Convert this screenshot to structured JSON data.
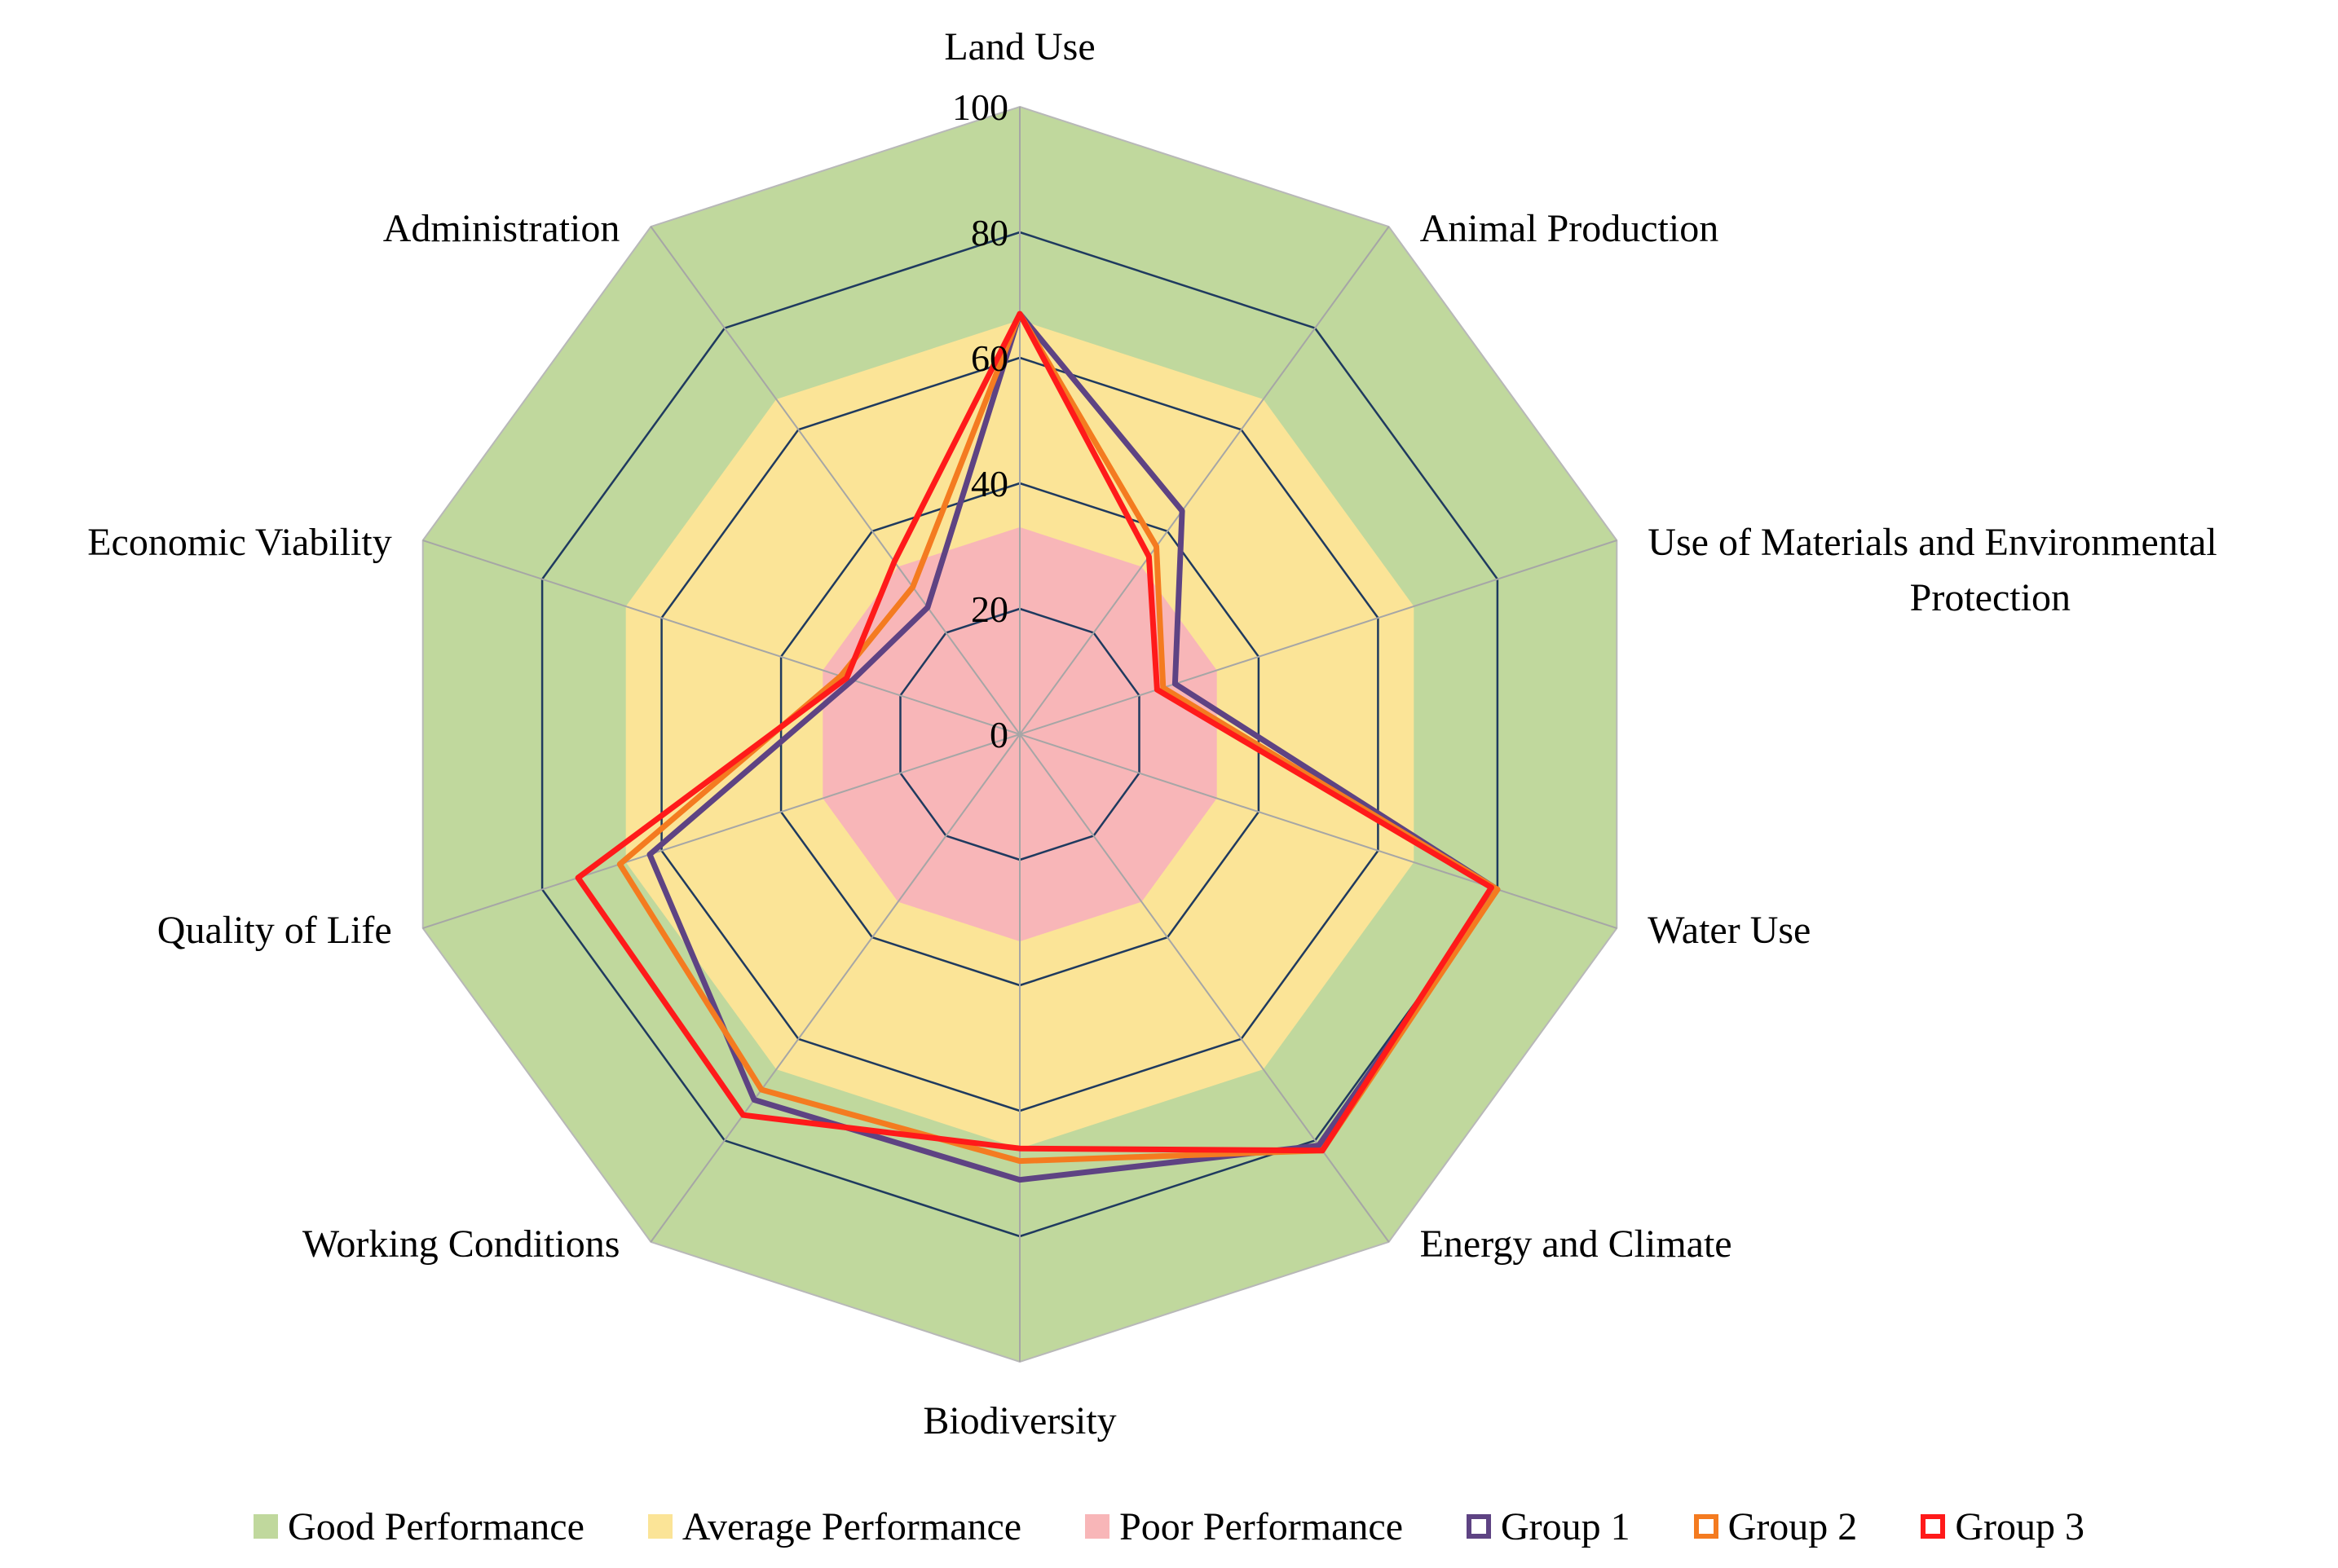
{
  "chart_data": {
    "type": "radar",
    "title": "",
    "axes": [
      "Land Use",
      "Animal Production",
      "Use of Materials and Environmental Protection",
      "Water Use",
      "Energy and Climate",
      "Biodiversity",
      "Working Conditions",
      "Quality of Life",
      "Economic Viability",
      "Administration"
    ],
    "axis_label_lines": [
      [
        "Land Use"
      ],
      [
        "Animal Production"
      ],
      [
        "Use of Materials and Environmental",
        "Protection"
      ],
      [
        "Water Use"
      ],
      [
        "Energy and Climate"
      ],
      [
        "Biodiversity"
      ],
      [
        "Working Conditions"
      ],
      [
        "Quality of Life"
      ],
      [
        "Economic Viability"
      ],
      [
        "Administration"
      ]
    ],
    "r_range": [
      0,
      100
    ],
    "ticks": [
      0,
      20,
      40,
      60,
      80,
      100
    ],
    "bands": [
      {
        "name": "Good Performance",
        "from": 66,
        "to": 100,
        "color": "#c0d89d"
      },
      {
        "name": "Average Performance",
        "from": 33,
        "to": 66,
        "color": "#fbe497"
      },
      {
        "name": "Poor Performance",
        "from": 0,
        "to": 33,
        "color": "#f8b6b8"
      }
    ],
    "series": [
      {
        "name": "Group 1",
        "color": "#5e4383",
        "values": [
          67,
          44,
          26,
          80,
          81,
          71,
          72,
          62,
          28,
          25
        ]
      },
      {
        "name": "Group 2",
        "color": "#f47b20",
        "values": [
          67,
          37,
          24,
          80,
          82,
          68,
          70,
          67,
          30,
          29
        ]
      },
      {
        "name": "Group 3",
        "color": "#ff1a1a",
        "values": [
          67,
          35,
          23,
          79,
          82,
          66,
          75,
          74,
          29,
          34
        ]
      }
    ]
  }
}
